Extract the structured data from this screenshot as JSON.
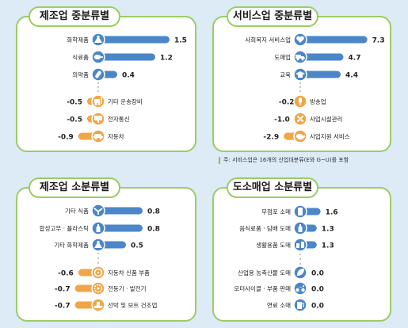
{
  "colors": {
    "positive": "#4a86c8",
    "negative": "#f0a646",
    "icon_pos": "#4a86c8",
    "icon_neg": "#f0a646",
    "border": "#9acd63"
  },
  "note": "주: 서비스업은 16개의 산업대분류(E와 G~U)를 포함",
  "chart_data": [
    {
      "type": "bar",
      "title": "제조업 중분류별",
      "categories": [
        "화학제품",
        "식료품",
        "의약품",
        "기타 운송장비",
        "전자통신",
        "자동차"
      ],
      "values": [
        1.5,
        1.2,
        0.4,
        -0.5,
        -0.5,
        -0.9
      ],
      "labels": [
        "1.5",
        "1.2",
        "0.4",
        "-0.5",
        "-0.5",
        "-0.9"
      ],
      "icons": [
        "flask-icon",
        "meat-icon",
        "pill-icon",
        "lift-truck-icon",
        "network-icon",
        "car-icon"
      ]
    },
    {
      "type": "bar",
      "title": "서비스업 중분류별",
      "categories": [
        "사회복지 서비스업",
        "도매업",
        "교육",
        "방송업",
        "사업시설관리",
        "사업지원 서비스"
      ],
      "values": [
        7.3,
        4.7,
        4.4,
        -0.2,
        -1.0,
        -2.9
      ],
      "labels": [
        "7.3",
        "4.7",
        "4.4",
        "-0.2",
        "-1.0",
        "-2.9"
      ],
      "icons": [
        "hands-heart-icon",
        "truck-icon",
        "graduation-cap-icon",
        "microphone-icon",
        "tools-icon",
        "handshake-icon"
      ]
    },
    {
      "type": "bar",
      "title": "제조업 소분류별",
      "categories": [
        "기타 식품",
        "합성고무 · 플라스틱",
        "기타 화학제품",
        "자동차 신품 부품",
        "전동기 · 발전기",
        "선박 및 보트 건조업"
      ],
      "values": [
        0.8,
        0.8,
        0.5,
        -0.6,
        -0.7,
        -0.7
      ],
      "labels": [
        "0.8",
        "0.8",
        "0.5",
        "-0.6",
        "-0.7",
        "-0.7"
      ],
      "icons": [
        "grain-icon",
        "bottle-icon",
        "flask-icon",
        "steering-wheel-icon",
        "generator-icon",
        "ship-icon"
      ]
    },
    {
      "type": "bar",
      "title": "도소매업 소분류별",
      "categories": [
        "무점포 소매",
        "음식료품 · 담배 도매",
        "생활용품 도매",
        "산업용 농축산물 도매",
        "모터사이클 · 부품 판매",
        "연료 소매"
      ],
      "values": [
        1.6,
        1.3,
        1.3,
        0.0,
        0.0,
        0.0
      ],
      "labels": [
        "1.6",
        "1.3",
        "1.3",
        "0.0",
        "0.0",
        "0.0"
      ],
      "icons": [
        "mobile-shop-icon",
        "bottle-icon",
        "household-icon",
        "leaf-icon",
        "motorcycle-icon",
        "fuel-icon"
      ]
    }
  ]
}
